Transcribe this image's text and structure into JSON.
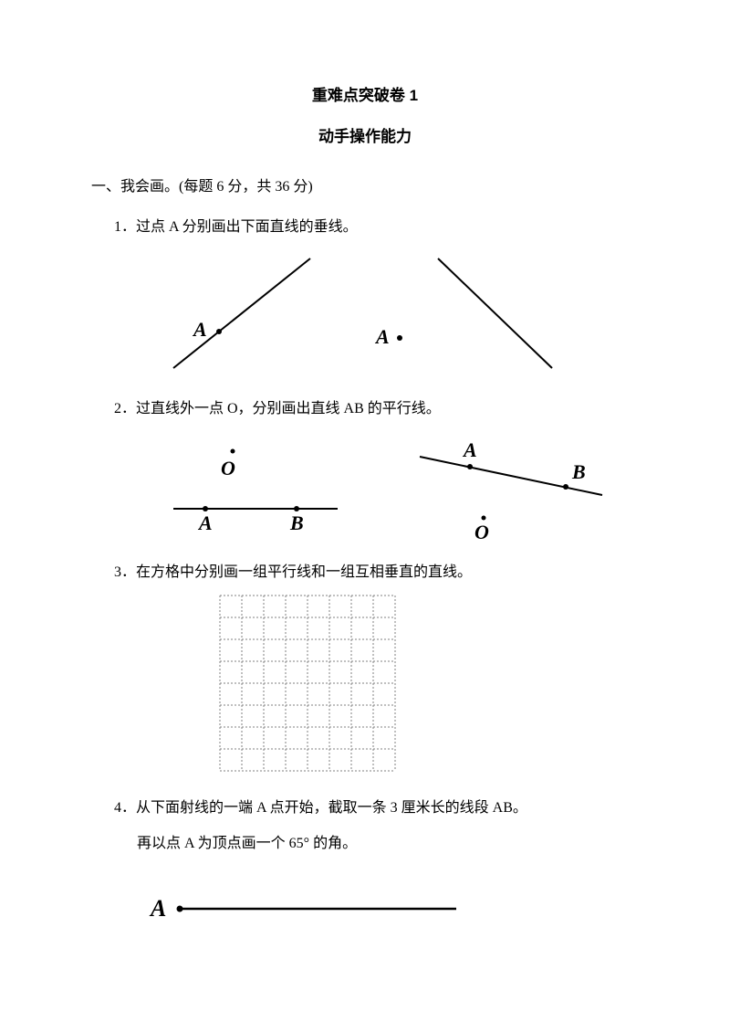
{
  "title": "重难点突破卷 1",
  "subtitle": "动手操作能力",
  "section1": {
    "header": "一、我会画。(每题 6 分，共 36 分)",
    "q1": {
      "text": "1．过点 A 分别画出下面直线的垂线。",
      "labelA": "A"
    },
    "q2": {
      "text": "2．过直线外一点 O，分别画出直线 AB 的平行线。",
      "labelO": "O",
      "labelA": "A",
      "labelB": "B"
    },
    "q3": {
      "text": "3．在方格中分别画一组平行线和一组互相垂直的直线。",
      "grid": {
        "cols": 8,
        "rows": 8,
        "cellSize": 24,
        "lineColor": "#808080"
      }
    },
    "q4": {
      "text": "4．从下面射线的一端 A 点开始，截取一条 3 厘米长的线段 AB。",
      "text2": "再以点 A 为顶点画一个 65° 的角。",
      "labelA": "A"
    }
  },
  "colors": {
    "line": "#000000",
    "gridLine": "#707070"
  }
}
